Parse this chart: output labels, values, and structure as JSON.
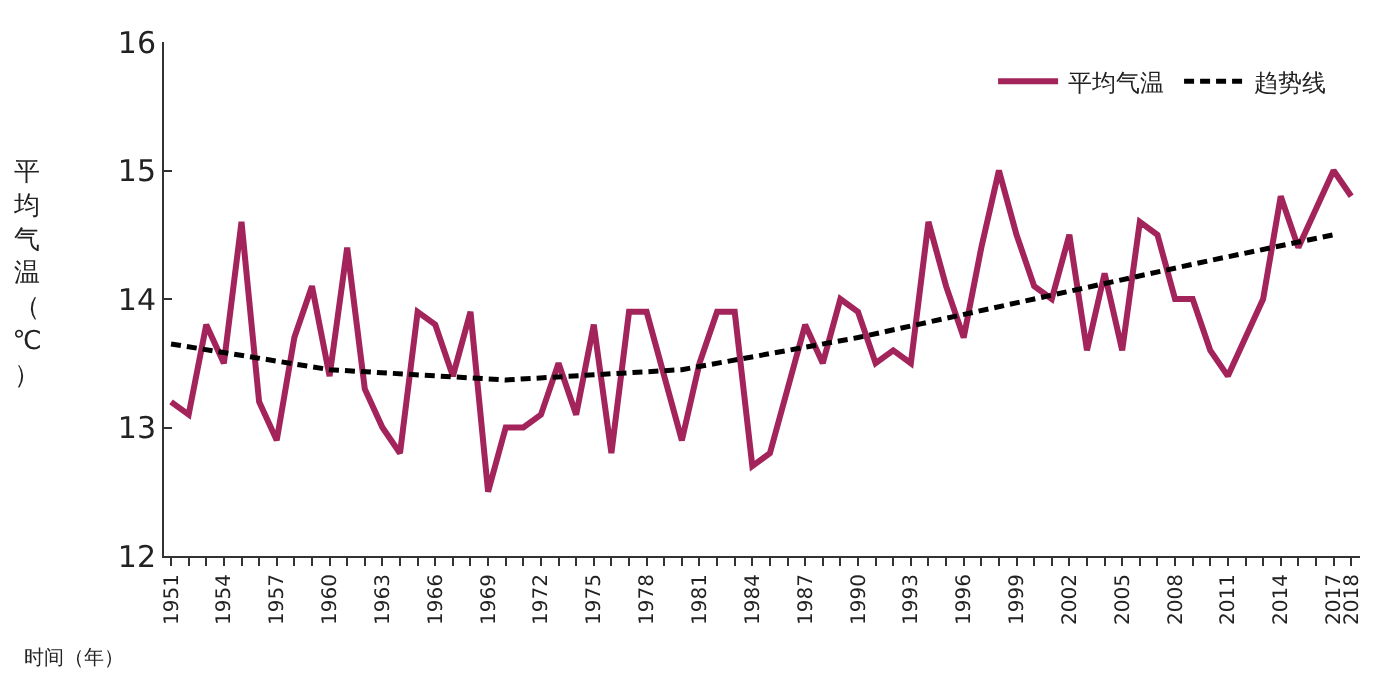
{
  "chart_data": {
    "type": "line",
    "xlabel": "时间（年）",
    "ylabel": "平均气温（℃）",
    "x": [
      1951,
      1952,
      1953,
      1954,
      1955,
      1956,
      1957,
      1958,
      1959,
      1960,
      1961,
      1962,
      1963,
      1964,
      1965,
      1966,
      1967,
      1968,
      1969,
      1970,
      1971,
      1972,
      1973,
      1974,
      1975,
      1976,
      1977,
      1978,
      1979,
      1980,
      1981,
      1982,
      1983,
      1984,
      1985,
      1986,
      1987,
      1988,
      1989,
      1990,
      1991,
      1992,
      1993,
      1994,
      1995,
      1996,
      1997,
      1998,
      1999,
      2000,
      2001,
      2002,
      2003,
      2004,
      2005,
      2006,
      2007,
      2008,
      2009,
      2010,
      2011,
      2012,
      2013,
      2014,
      2015,
      2016,
      2017,
      2018
    ],
    "series": [
      {
        "name": "平均气温",
        "color": "#a3245a",
        "line_style": "solid",
        "values": [
          13.2,
          13.1,
          13.8,
          13.5,
          14.6,
          13.2,
          12.9,
          13.7,
          14.1,
          13.4,
          14.4,
          13.3,
          13.0,
          12.8,
          13.9,
          13.8,
          13.4,
          13.9,
          12.5,
          13.0,
          13.0,
          13.1,
          13.5,
          13.1,
          13.8,
          12.8,
          13.9,
          13.9,
          13.4,
          12.9,
          13.5,
          13.9,
          13.9,
          12.7,
          12.8,
          13.3,
          13.8,
          13.5,
          14.0,
          13.9,
          13.5,
          13.6,
          13.5,
          14.6,
          14.1,
          13.7,
          14.4,
          15.0,
          14.5,
          14.1,
          14.0,
          14.5,
          13.6,
          14.2,
          13.6,
          14.6,
          14.5,
          14.0,
          14.0,
          13.6,
          13.4,
          13.7,
          14.0,
          14.8,
          14.4,
          14.7,
          15.0,
          14.8
        ]
      },
      {
        "name": "趋势线",
        "color": "#000000",
        "line_style": "dashed",
        "x": [
          1951,
          1960,
          1970,
          1980,
          1990,
          2000,
          2010,
          2017
        ],
        "values": [
          13.65,
          13.45,
          13.37,
          13.45,
          13.7,
          14.0,
          14.3,
          14.5
        ]
      }
    ],
    "ylim": [
      12,
      16
    ],
    "yticks": [
      12,
      13,
      14,
      15,
      16
    ],
    "xlim": [
      1950.6,
      2018.5
    ],
    "xticks": [
      1951,
      {
        "value": 1952,
        "label": null
      },
      {
        "value": 1953,
        "label": null
      },
      1954,
      {
        "value": 1955,
        "label": null
      },
      {
        "value": 1956,
        "label": null
      },
      1957,
      {
        "value": 1958,
        "label": null
      },
      {
        "value": 1959,
        "label": null
      },
      1960,
      {
        "value": 1961,
        "label": null
      },
      {
        "value": 1962,
        "label": null
      },
      1963,
      {
        "value": 1964,
        "label": null
      },
      {
        "value": 1965,
        "label": null
      },
      1966,
      {
        "value": 1967,
        "label": null
      },
      {
        "value": 1968,
        "label": null
      },
      1969,
      {
        "value": 1970,
        "label": null
      },
      {
        "value": 1971,
        "label": null
      },
      1972,
      {
        "value": 1973,
        "label": null
      },
      {
        "value": 1974,
        "label": null
      },
      1975,
      {
        "value": 1976,
        "label": null
      },
      {
        "value": 1977,
        "label": null
      },
      1978,
      {
        "value": 1979,
        "label": null
      },
      {
        "value": 1980,
        "label": null
      },
      1981,
      {
        "value": 1982,
        "label": null
      },
      {
        "value": 1983,
        "label": null
      },
      1984,
      {
        "value": 1985,
        "label": null
      },
      {
        "value": 1986,
        "label": null
      },
      1987,
      {
        "value": 1988,
        "label": null
      },
      {
        "value": 1989,
        "label": null
      },
      1990,
      {
        "value": 1991,
        "label": null
      },
      {
        "value": 1992,
        "label": null
      },
      1993,
      {
        "value": 1994,
        "label": null
      },
      {
        "value": 1995,
        "label": null
      },
      1996,
      {
        "value": 1997,
        "label": null
      },
      {
        "value": 1998,
        "label": null
      },
      1999,
      {
        "value": 2000,
        "label": null
      },
      {
        "value": 2001,
        "label": null
      },
      2002,
      {
        "value": 2003,
        "label": null
      },
      {
        "value": 2004,
        "label": null
      },
      2005,
      {
        "value": 2006,
        "label": null
      },
      {
        "value": 2007,
        "label": null
      },
      2008,
      {
        "value": 2009,
        "label": null
      },
      {
        "value": 2010,
        "label": null
      },
      2011,
      {
        "value": 2012,
        "label": null
      },
      {
        "value": 2013,
        "label": null
      },
      2014,
      {
        "value": 2015,
        "label": null
      },
      {
        "value": 2016,
        "label": null
      },
      2017,
      2018
    ],
    "legend": "top right",
    "marker": "none"
  }
}
